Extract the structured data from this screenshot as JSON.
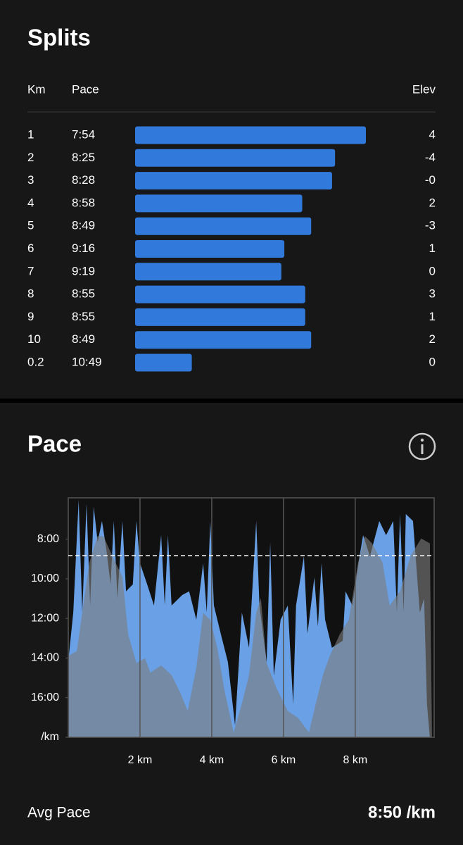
{
  "splits": {
    "title": "Splits",
    "columns": [
      "Km",
      "Pace",
      "Elev"
    ],
    "rows": [
      [
        "1",
        "7:54",
        "4"
      ],
      [
        "2",
        "8:25",
        "-4"
      ],
      [
        "3",
        "8:28",
        "-0"
      ],
      [
        "4",
        "8:58",
        "2"
      ],
      [
        "5",
        "8:49",
        "-3"
      ],
      [
        "6",
        "9:16",
        "1"
      ],
      [
        "7",
        "9:19",
        "0"
      ],
      [
        "8",
        "8:55",
        "3"
      ],
      [
        "9",
        "8:55",
        "1"
      ],
      [
        "10",
        "8:49",
        "2"
      ],
      [
        "0.2",
        "10:49",
        "0"
      ]
    ]
  },
  "chart_data": {
    "type": "area",
    "title": "Pace",
    "xlim": [
      0,
      10.2
    ],
    "xticks": [
      {
        "value": 2,
        "label": "2 km"
      },
      {
        "value": 4,
        "label": "4 km"
      },
      {
        "value": 6,
        "label": "6 km"
      },
      {
        "value": 8,
        "label": "8 km"
      }
    ],
    "ylim": [
      355,
      1080
    ],
    "y_reversed": true,
    "yticks": [
      {
        "value": 480,
        "label": "8:00"
      },
      {
        "value": 600,
        "label": "10:00"
      },
      {
        "value": 720,
        "label": "12:00"
      },
      {
        "value": 840,
        "label": "14:00"
      },
      {
        "value": 960,
        "label": "16:00"
      },
      {
        "value": 1080,
        "label": "/km"
      }
    ],
    "y2lim": [
      0,
      100
    ],
    "grid": true,
    "series": [
      {
        "color": "#6aa0e6",
        "x": [
          0.02,
          0.14,
          0.29,
          0.39,
          0.51,
          0.61,
          0.71,
          0.82,
          0.94,
          1.06,
          1.18,
          1.27,
          1.37,
          1.51,
          1.61,
          1.8,
          1.9,
          2.0,
          2.2,
          2.39,
          2.59,
          2.69,
          2.78,
          2.88,
          3.18,
          3.37,
          3.57,
          3.76,
          3.86,
          3.96,
          4.06,
          4.25,
          4.45,
          4.65,
          4.84,
          5.04,
          5.24,
          5.33,
          5.53,
          5.63,
          5.73,
          5.92,
          6.12,
          6.27,
          6.35,
          6.57,
          6.67,
          6.86,
          6.96,
          7.06,
          7.16,
          7.35,
          7.65,
          7.73,
          7.92,
          8.12,
          8.22,
          8.41,
          8.67,
          8.86,
          9.06,
          9.16,
          9.25,
          9.35,
          9.41,
          9.61,
          9.8,
          9.92,
          10.0,
          10.08
        ],
        "values": [
          830,
          702,
          361,
          702,
          372,
          681,
          382,
          489,
          425,
          510,
          617,
          425,
          660,
          425,
          638,
          617,
          425,
          553,
          617,
          681,
          468,
          681,
          468,
          681,
          649,
          638,
          724,
          553,
          702,
          425,
          681,
          766,
          852,
          1044,
          702,
          809,
          425,
          681,
          852,
          489,
          894,
          724,
          681,
          980,
          681,
          532,
          766,
          596,
          745,
          553,
          724,
          809,
          788,
          638,
          681,
          532,
          468,
          532,
          425,
          468,
          425,
          702,
          404,
          702,
          404,
          425,
          702,
          660,
          980,
          1080
        ]
      },
      {
        "color": "rgba(125,125,125,0.62)",
        "axis": "y2",
        "x": [
          0,
          0.24,
          0.39,
          0.59,
          0.82,
          0.98,
          1.22,
          1.51,
          1.67,
          1.9,
          2.14,
          2.29,
          2.59,
          2.88,
          3.14,
          3.33,
          3.57,
          3.76,
          3.96,
          4.16,
          4.35,
          4.61,
          4.84,
          5.04,
          5.24,
          5.37,
          5.53,
          5.82,
          6.12,
          6.41,
          6.71,
          6.9,
          7.1,
          7.29,
          7.57,
          7.82,
          8.08,
          8.27,
          8.47,
          8.76,
          8.96,
          9.25,
          9.55,
          9.84,
          10.08,
          10.14
        ],
        "values": [
          34,
          36,
          52,
          73,
          84,
          84,
          76,
          67,
          43,
          31,
          33,
          27,
          30,
          26,
          18,
          11,
          29,
          52,
          49,
          37,
          20,
          2,
          14,
          26,
          52,
          58,
          31,
          20,
          11,
          8,
          2,
          14,
          26,
          34,
          43,
          49,
          73,
          84,
          81,
          73,
          55,
          61,
          76,
          83,
          81,
          0
        ]
      }
    ],
    "avg": {
      "name": "Avg Pace",
      "value": 530,
      "label": "8:50 /km"
    }
  }
}
